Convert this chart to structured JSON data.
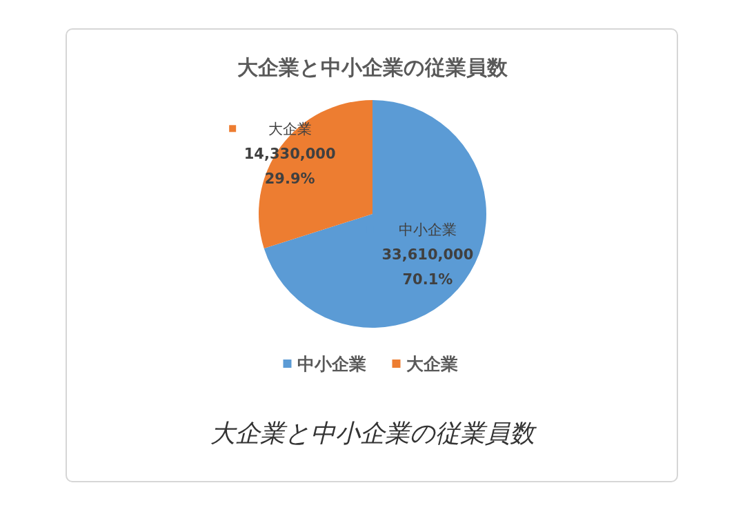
{
  "chart_data": {
    "type": "pie",
    "title": "大企業と中小企業の従業員数",
    "categories": [
      "中小企業",
      "大企業"
    ],
    "values": [
      33610000,
      14330000
    ],
    "colors": [
      "#5b9bd5",
      "#ed7d31"
    ],
    "value_labels": [
      "33,610,000\n70.1%",
      "14,330,000\n29.9%"
    ],
    "legend": "bottom",
    "annotations": [
      "大企業と中小企業の従業員数"
    ]
  }
}
